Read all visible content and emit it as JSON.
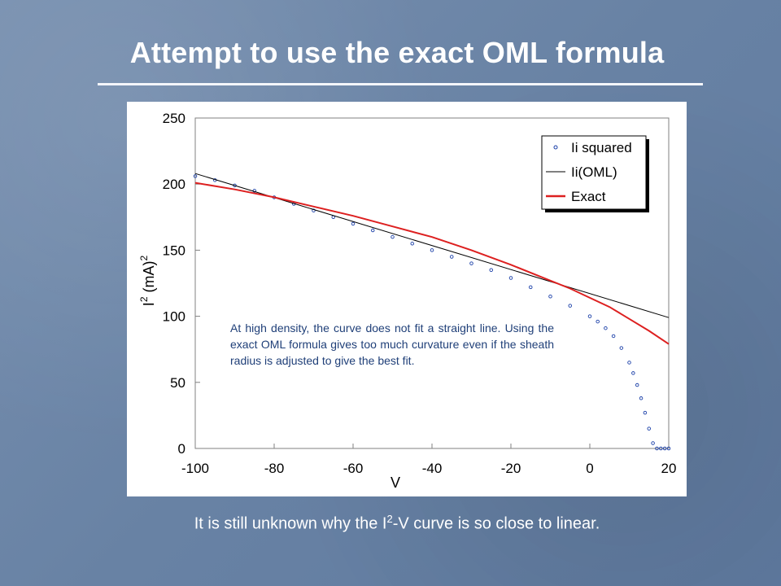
{
  "slide": {
    "title": "Attempt to use the exact OML formula",
    "footer_pre": "It is still unknown why the I",
    "footer_sup": "2",
    "footer_post": "-V curve is so close to linear."
  },
  "annotation": "At high density, the curve does not fit a straight line.  Using the exact OML formula gives too much curvature even if the sheath radius is adjusted to give the best fit.",
  "chart_data": {
    "type": "scatter",
    "xlabel": "V",
    "ylabel_main": "I",
    "ylabel_sup": "2",
    "ylabel_unit": " (mA)",
    "ylabel_unit_sup": "2",
    "xlim": [
      -100,
      20
    ],
    "ylim": [
      0,
      250
    ],
    "x_ticks": [
      -100,
      -80,
      -60,
      -40,
      -20,
      0,
      20
    ],
    "y_ticks": [
      0,
      50,
      100,
      150,
      200,
      250
    ],
    "grid": false,
    "legend_position": "top-right",
    "series": [
      {
        "name": "Ii squared",
        "style": "markers",
        "color": "#1a3fa8",
        "x": [
          -100,
          -95,
          -90,
          -85,
          -80,
          -75,
          -70,
          -65,
          -60,
          -55,
          -50,
          -45,
          -40,
          -35,
          -30,
          -25,
          -20,
          -15,
          -10,
          -5,
          0,
          2,
          4,
          6,
          8,
          10,
          11,
          12,
          13,
          14,
          15,
          16,
          17,
          18,
          19,
          20
        ],
        "y": [
          206,
          203,
          199,
          195,
          190,
          185,
          180,
          175,
          170,
          165,
          160,
          155,
          150,
          145,
          140,
          135,
          129,
          122,
          115,
          108,
          100,
          96,
          91,
          85,
          76,
          65,
          57,
          48,
          38,
          27,
          15,
          4,
          0,
          0,
          0,
          0
        ]
      },
      {
        "name": "Ii(OML)",
        "style": "line",
        "color": "#000000",
        "x": [
          -100,
          20
        ],
        "y": [
          208,
          99
        ]
      },
      {
        "name": "Exact",
        "style": "line",
        "color": "#dd2020",
        "x": [
          -100,
          -90,
          -80,
          -70,
          -60,
          -50,
          -40,
          -30,
          -20,
          -10,
          -5,
          0,
          5,
          10,
          15,
          20
        ],
        "y": [
          201,
          196,
          190,
          183,
          176,
          168,
          160,
          150,
          139,
          127,
          121,
          114,
          107,
          98,
          89,
          79
        ]
      }
    ]
  }
}
